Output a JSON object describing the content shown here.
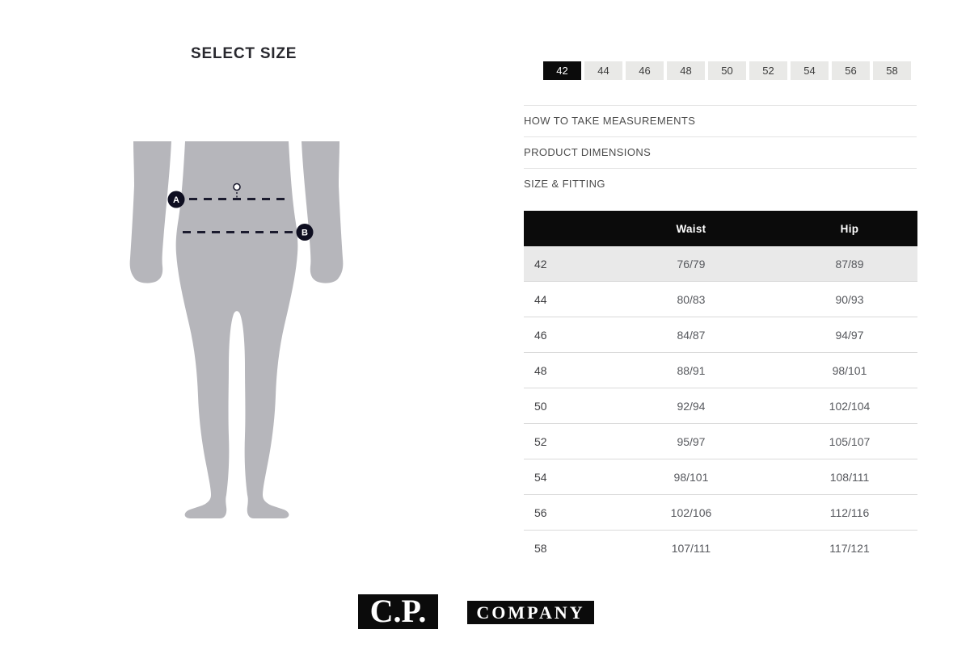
{
  "page": {
    "title": "SELECT SIZE"
  },
  "size_selector": {
    "options": [
      "42",
      "44",
      "46",
      "48",
      "50",
      "52",
      "54",
      "56",
      "58"
    ],
    "selected": "42"
  },
  "accordion": {
    "items": [
      "HOW TO TAKE MEASUREMENTS",
      "PRODUCT DIMENSIONS",
      "SIZE & FITTING"
    ]
  },
  "size_table": {
    "headers": {
      "size": "",
      "waist": "Waist",
      "hip": "Hip"
    },
    "highlighted_size": "42",
    "rows": [
      {
        "size": "42",
        "waist": "76/79",
        "hip": "87/89"
      },
      {
        "size": "44",
        "waist": "80/83",
        "hip": "90/93"
      },
      {
        "size": "46",
        "waist": "84/87",
        "hip": "94/97"
      },
      {
        "size": "48",
        "waist": "88/91",
        "hip": "98/101"
      },
      {
        "size": "50",
        "waist": "92/94",
        "hip": "102/104"
      },
      {
        "size": "52",
        "waist": "95/97",
        "hip": "105/107"
      },
      {
        "size": "54",
        "waist": "98/101",
        "hip": "108/111"
      },
      {
        "size": "56",
        "waist": "102/106",
        "hip": "112/116"
      },
      {
        "size": "58",
        "waist": "107/111",
        "hip": "117/121"
      }
    ]
  },
  "diagram": {
    "marker_a": "A",
    "marker_b": "B"
  },
  "logo": {
    "cp": "C.P.",
    "company": "COMPANY"
  },
  "colors": {
    "accent_black": "#0b0b0b",
    "selected_row_bg": "#e9e9e9",
    "button_bg": "#e9e9e7",
    "silhouette_gray": "#b6b6bb",
    "marker_dark": "#1b1b2e"
  }
}
